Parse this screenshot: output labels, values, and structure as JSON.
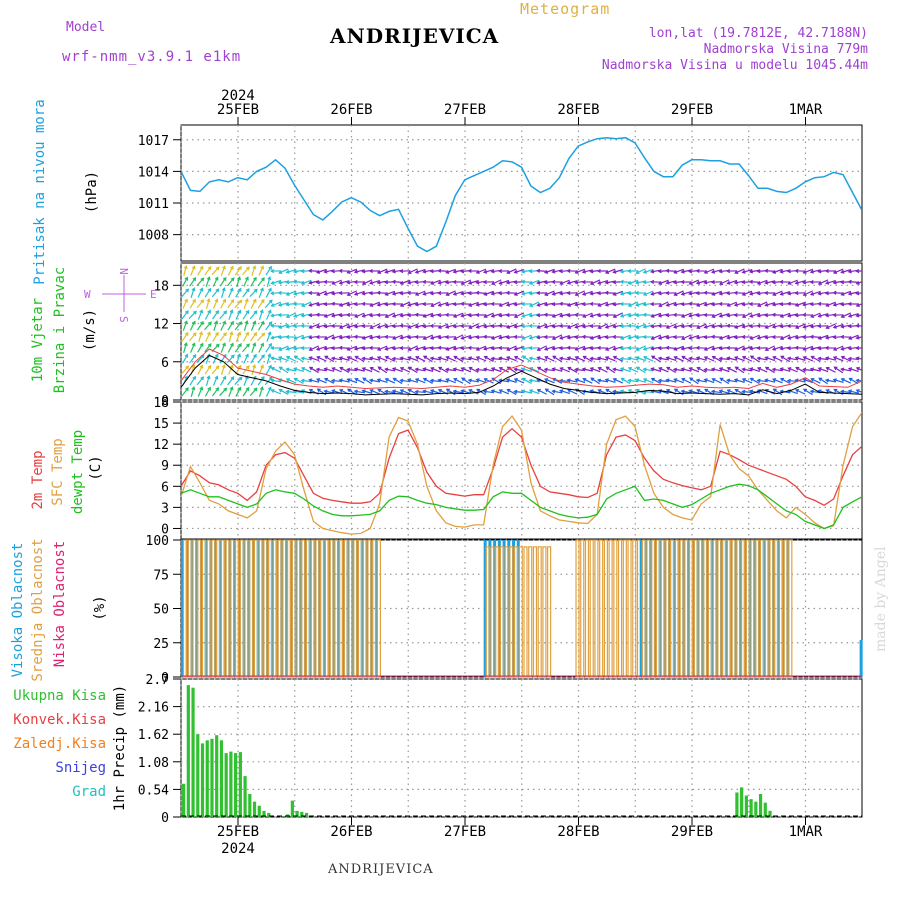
{
  "header": {
    "model_label": "Model",
    "model_name": "wrf-nmm_v3.9.1 e1km",
    "station": "ANDRIJEVICA",
    "meteogram_label": "Meteogram",
    "lonlat": "lon,lat (19.7812E, 42.7188N)",
    "elevation": "Nadmorska Visina 779m",
    "model_elevation": "Nadmorska Visina u modelu 1045.44m"
  },
  "footer": {
    "station": "ANDRIJEVICA",
    "made_by": "made by Angel"
  },
  "time_axis": {
    "year": "2024",
    "days": [
      "25FEB",
      "26FEB",
      "27FEB",
      "28FEB",
      "29FEB",
      "1MAR"
    ],
    "start_hour": 0,
    "end_hour": 144
  },
  "wind_compass": {
    "n": "N",
    "s": "S",
    "e": "E",
    "w": "W"
  },
  "colors": {
    "pressure": "#1ca0e0",
    "wind_label": "#20c020",
    "temp2m": "#e84040",
    "sfc": "#e0a040",
    "dew": "#20c020",
    "high_cloud": "#1ca0e0",
    "mid_cloud": "#e0a040",
    "low_cloud": "#e02070",
    "total_precip": "#30c030",
    "conv_precip": "#e84040",
    "frozen_precip": "#f08020",
    "snow": "#4040e0",
    "hail": "#20c0c0",
    "wind_purple": "#8020c0",
    "wind_blue": "#2060e0",
    "wind_cyan": "#20c0d0",
    "compass": "#c060e0"
  },
  "chart_data": [
    {
      "type": "line",
      "panel": "pressure",
      "ylabel": "Pritisak na nivou mora",
      "unit": "(hPa)",
      "yticks": [
        1008,
        1011,
        1014,
        1017
      ],
      "ylim": [
        1005.5,
        1018.4
      ],
      "x": [
        0,
        2,
        4,
        6,
        8,
        10,
        12,
        14,
        16,
        18,
        20,
        22,
        24,
        26,
        28,
        30,
        32,
        34,
        36,
        38,
        40,
        42,
        44,
        46,
        48,
        50,
        52,
        54,
        56,
        58,
        60,
        62,
        64,
        66,
        68,
        70,
        72,
        74,
        76,
        78,
        80,
        82,
        84,
        86,
        88,
        90,
        92,
        94,
        96,
        98,
        100,
        102,
        104,
        106,
        108,
        110,
        112,
        114,
        116,
        118,
        120,
        122,
        124,
        126,
        128,
        130,
        132,
        134,
        136,
        138,
        140,
        142,
        144
      ],
      "series": [
        {
          "name": "",
          "values": [
            1014.0,
            1012.2,
            1012.1,
            1013.0,
            1013.2,
            1013.0,
            1013.4,
            1013.2,
            1014.0,
            1014.4,
            1015.1,
            1014.3,
            1012.7,
            1011.3,
            1009.9,
            1009.4,
            1010.2,
            1011.1,
            1011.5,
            1011.1,
            1010.3,
            1009.8,
            1010.2,
            1010.4,
            1008.6,
            1006.9,
            1006.4,
            1006.9,
            1009.2,
            1011.7,
            1013.2,
            1013.6,
            1014.0,
            1014.4,
            1015.0,
            1014.9,
            1014.4,
            1012.6,
            1012.0,
            1012.4,
            1013.4,
            1015.2,
            1016.4,
            1016.8,
            1017.1,
            1017.2,
            1017.1,
            1017.2,
            1016.7,
            1015.3,
            1014.0,
            1013.5,
            1013.5,
            1014.6,
            1015.1,
            1015.1,
            1015.0,
            1015.0,
            1014.7,
            1014.7,
            1013.6,
            1012.4,
            1012.4,
            1012.1,
            1012.0,
            1012.4,
            1013.0,
            1013.4,
            1013.5,
            1013.9,
            1013.7,
            1012.0,
            1010.3
          ]
        }
      ]
    },
    {
      "type": "line",
      "panel": "wind",
      "ylabel": "10m Vjetar",
      "ylabel2": "Brzina i Pravac",
      "unit": "(m/s)",
      "yticks": [
        0,
        6,
        12,
        18
      ],
      "ylim": [
        0,
        21.5
      ],
      "x": [
        0,
        3,
        6,
        9,
        12,
        15,
        18,
        21,
        24,
        27,
        30,
        33,
        36,
        39,
        42,
        45,
        48,
        51,
        54,
        57,
        60,
        63,
        66,
        69,
        72,
        75,
        78,
        81,
        84,
        87,
        90,
        93,
        96,
        99,
        102,
        105,
        108,
        111,
        114,
        117,
        120,
        123,
        126,
        129,
        132,
        135,
        138,
        141,
        144
      ],
      "series": [
        {
          "name": "",
          "values": [
            2.0,
            5.0,
            7.0,
            6.0,
            4.0,
            3.5,
            3.0,
            2.2,
            1.5,
            1.2,
            1.0,
            1.1,
            1.0,
            0.8,
            0.9,
            1.0,
            0.9,
            0.8,
            1.0,
            1.1,
            1.0,
            1.2,
            2.2,
            3.5,
            4.5,
            3.5,
            2.5,
            1.8,
            1.5,
            1.2,
            1.0,
            1.1,
            1.2,
            1.5,
            1.4,
            1.0,
            1.1,
            1.0,
            0.9,
            1.0,
            0.8,
            1.6,
            1.0,
            1.5,
            2.5,
            1.2,
            1.1,
            1.0,
            0.9
          ]
        },
        {
          "name": "",
          "values": [
            3.0,
            6.0,
            8.0,
            7.0,
            5.0,
            4.5,
            4.0,
            3.2,
            2.5,
            2.2,
            2.0,
            2.2,
            2.0,
            1.8,
            1.9,
            2.0,
            1.9,
            1.8,
            2.0,
            2.2,
            2.0,
            2.3,
            3.2,
            4.8,
            5.5,
            4.5,
            3.5,
            2.8,
            2.5,
            2.2,
            2.0,
            2.1,
            2.3,
            2.5,
            2.4,
            2.0,
            2.2,
            2.0,
            1.9,
            2.0,
            1.8,
            2.6,
            2.0,
            2.5,
            3.5,
            2.2,
            2.1,
            2.0,
            3.0
          ]
        }
      ]
    },
    {
      "type": "line",
      "panel": "temperature",
      "ylabel": "2m Temp",
      "ylabel2": "SFC Temp",
      "ylabel3": "dewpt Temp",
      "unit": "(C)",
      "yticks": [
        0,
        3,
        6,
        9,
        12,
        15,
        18
      ],
      "ylim": [
        -1.5,
        18
      ],
      "x": [
        0,
        2,
        4,
        6,
        8,
        10,
        12,
        14,
        16,
        18,
        20,
        22,
        24,
        26,
        28,
        30,
        32,
        34,
        36,
        38,
        40,
        42,
        44,
        46,
        48,
        50,
        52,
        54,
        56,
        58,
        60,
        62,
        64,
        66,
        68,
        70,
        72,
        74,
        76,
        78,
        80,
        82,
        84,
        86,
        88,
        90,
        92,
        94,
        96,
        98,
        100,
        102,
        104,
        106,
        108,
        110,
        112,
        114,
        116,
        118,
        120,
        122,
        124,
        126,
        128,
        130,
        132,
        134,
        136,
        138,
        140,
        142,
        144
      ],
      "series": [
        {
          "name": "2m Temp",
          "values": [
            6.0,
            8.2,
            7.5,
            6.5,
            6.2,
            5.5,
            5.0,
            4.0,
            5.2,
            9.0,
            10.5,
            10.8,
            10.0,
            7.5,
            5.0,
            4.3,
            4.0,
            3.8,
            3.6,
            3.6,
            3.8,
            5.0,
            10.0,
            13.5,
            14.0,
            11.5,
            8.0,
            6.0,
            5.0,
            4.8,
            4.6,
            4.8,
            4.8,
            8.5,
            13.0,
            14.2,
            13.0,
            9.0,
            6.0,
            5.2,
            5.0,
            4.8,
            4.5,
            4.4,
            5.0,
            10.5,
            13.0,
            13.3,
            12.5,
            10.0,
            8.2,
            7.0,
            6.5,
            6.1,
            5.8,
            5.5,
            6.0,
            11.0,
            10.5,
            9.8,
            9.0,
            8.5,
            8.0,
            7.5,
            7.0,
            6.0,
            4.5,
            4.0,
            3.3,
            4.2,
            7.5,
            10.5,
            11.7
          ]
        },
        {
          "name": "SFC Temp",
          "values": [
            4.5,
            8.8,
            6.5,
            4.0,
            3.5,
            2.5,
            2.0,
            1.5,
            2.5,
            8.5,
            11.0,
            12.3,
            10.5,
            5.5,
            1.0,
            0.0,
            -0.3,
            -0.6,
            -0.8,
            -0.7,
            0.0,
            3.5,
            13.0,
            15.8,
            15.3,
            12.0,
            6.0,
            2.5,
            0.8,
            0.3,
            0.2,
            0.5,
            0.5,
            9.0,
            14.5,
            16.0,
            14.0,
            6.5,
            2.5,
            1.8,
            1.2,
            1.0,
            0.8,
            0.7,
            2.0,
            12.0,
            15.5,
            16.0,
            14.5,
            9.0,
            5.0,
            3.0,
            2.0,
            1.5,
            1.2,
            3.5,
            4.5,
            14.8,
            10.5,
            8.5,
            7.5,
            5.5,
            4.0,
            2.5,
            1.5,
            3.0,
            2.0,
            0.8,
            0.0,
            0.4,
            9.0,
            14.5,
            16.5
          ]
        },
        {
          "name": "dewpt Temp",
          "values": [
            5.0,
            5.5,
            5.0,
            4.5,
            4.5,
            4.0,
            3.5,
            3.0,
            3.5,
            5.0,
            5.5,
            5.2,
            5.0,
            4.2,
            3.2,
            2.5,
            2.0,
            1.8,
            1.8,
            1.9,
            2.0,
            2.5,
            4.0,
            4.6,
            4.5,
            4.0,
            3.6,
            3.4,
            3.0,
            2.8,
            2.6,
            2.6,
            2.7,
            4.5,
            5.2,
            5.0,
            5.0,
            4.0,
            3.0,
            2.5,
            2.0,
            1.7,
            1.5,
            1.6,
            2.0,
            4.2,
            5.0,
            5.5,
            6.0,
            4.0,
            4.2,
            4.0,
            3.5,
            3.0,
            3.4,
            4.2,
            5.0,
            5.5,
            6.0,
            6.3,
            6.1,
            5.5,
            4.5,
            3.5,
            2.5,
            2.0,
            1.0,
            0.5,
            0.0,
            0.5,
            3.0,
            3.8,
            4.5
          ]
        }
      ]
    },
    {
      "type": "bar",
      "panel": "cloud",
      "ylabel": "Visoka Oblacnost",
      "ylabel2": "Srednja Oblacnost",
      "ylabel3": "Niska Oblacnost",
      "unit": "(%)",
      "yticks": [
        0,
        25,
        50,
        75,
        100
      ],
      "ylim": [
        0,
        100
      ],
      "segments": [
        {
          "name": "Visoka Oblacnost",
          "start": 0,
          "end": 41,
          "value": 100,
          "gaps": [
            0.2
          ]
        },
        {
          "name": "Srednja Oblacnost",
          "start": 0,
          "end": 41,
          "value": 100,
          "gaps": [
            0.6
          ]
        },
        {
          "name": "Visoka Oblacnost",
          "start": 64,
          "end": 71,
          "value": 100,
          "gaps": [
            0.3
          ]
        },
        {
          "name": "Srednja Oblacnost",
          "start": 64,
          "end": 77,
          "value": 95,
          "gaps": [
            0.6
          ]
        },
        {
          "name": "Srednja Oblacnost",
          "start": 83,
          "end": 96,
          "value": 100,
          "gaps": [
            0.5
          ]
        },
        {
          "name": "Visoka Oblacnost",
          "start": 97,
          "end": 128,
          "value": 100,
          "gaps": [
            0.2
          ]
        },
        {
          "name": "Srednja Oblacnost",
          "start": 97,
          "end": 128,
          "value": 100,
          "gaps": [
            0.6
          ]
        },
        {
          "name": "Visoka Oblacnost",
          "start": 143.5,
          "end": 144,
          "value": 27,
          "gaps": [
            0.3
          ]
        }
      ]
    },
    {
      "type": "bar",
      "panel": "precip",
      "ylabels": [
        "Ukupna Kisa",
        "Konvek.Kisa",
        "Zaledj.Kisa",
        "Snijeg",
        "Grad"
      ],
      "unit": "1hr Precip (mm)",
      "yticks": [
        0,
        0.54,
        1.08,
        1.62,
        2.16,
        2.7
      ],
      "ylim": [
        0,
        2.7
      ],
      "x": [
        0,
        1,
        2,
        3,
        4,
        5,
        6,
        7,
        8,
        9,
        10,
        11,
        12,
        13,
        14,
        15,
        16,
        17,
        18,
        22,
        23,
        24,
        25,
        26,
        117,
        118,
        119,
        120,
        121,
        122,
        123,
        124
      ],
      "values": [
        0.65,
        2.58,
        2.53,
        1.62,
        1.44,
        1.5,
        1.53,
        1.6,
        1.5,
        1.25,
        1.28,
        1.25,
        1.27,
        0.8,
        0.45,
        0.3,
        0.22,
        0.12,
        0.08,
        0.05,
        0.32,
        0.12,
        0.1,
        0.08,
        0.48,
        0.58,
        0.42,
        0.35,
        0.3,
        0.45,
        0.28,
        0.12
      ]
    }
  ]
}
